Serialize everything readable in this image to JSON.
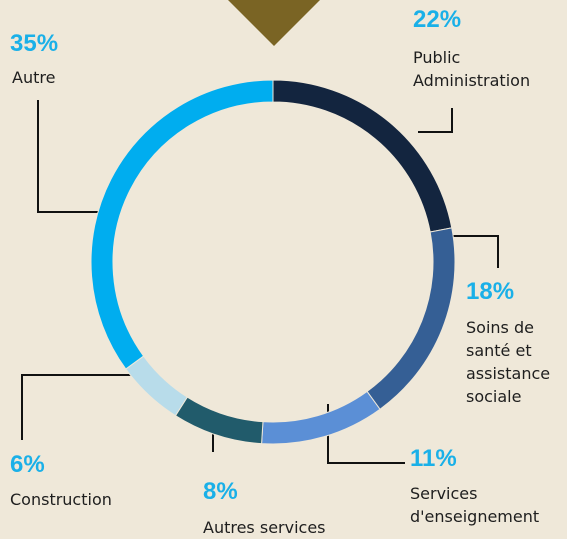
{
  "chart_data": {
    "type": "pie",
    "donut": true,
    "categories": [
      "Public Administration",
      "Soins de santé et assistance sociale",
      "Services d'enseignement",
      "Autres services",
      "Construction",
      "Autre"
    ],
    "values": [
      22,
      18,
      11,
      8,
      6,
      35
    ],
    "value_labels": [
      "22%",
      "18%",
      "11%",
      "8%",
      "6%",
      "35%"
    ],
    "colors": [
      "#13253f",
      "#355f95",
      "#5b8fd6",
      "#215b6b",
      "#b8dcea",
      "#00adef"
    ]
  }
}
